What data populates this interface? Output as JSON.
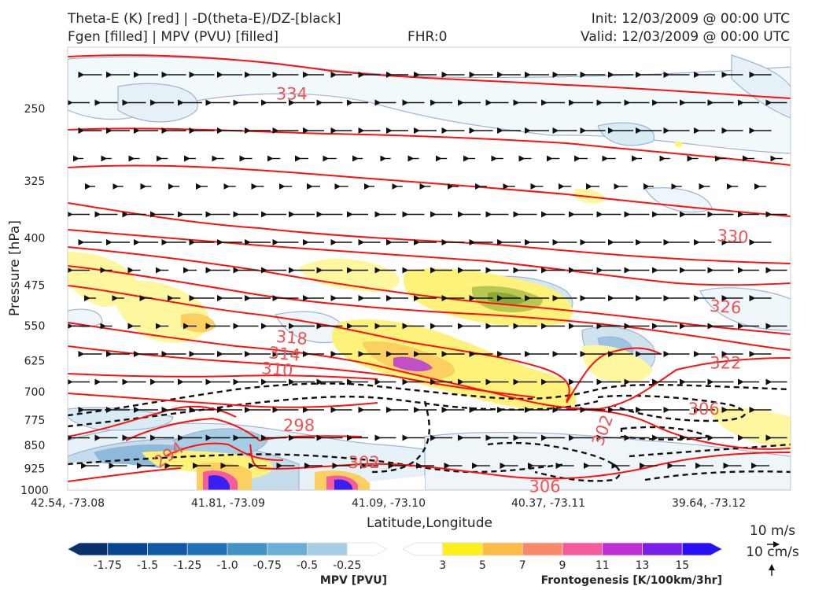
{
  "header": {
    "title_line1": "Theta-E (K) [red] | -D(theta-E)/DZ-[black]",
    "title_line2": "Fgen [filled] | MPV (PVU) [filled]",
    "fhr": "FHR:0",
    "init": "Init: 12/03/2009 @ 00:00 UTC",
    "valid": "Valid: 12/03/2009 @ 00:00 UTC"
  },
  "chart_data": {
    "type": "cross-section",
    "xlabel": "Latitude,Longitude",
    "ylabel": "Pressure [hPa]",
    "x_ticks": [
      "42.54, -73.08",
      "41.81, -73.09",
      "41.09, -73.10",
      "40.37, -73.11",
      "39.64, -73.12"
    ],
    "y_ticks": [
      250,
      325,
      400,
      475,
      550,
      625,
      700,
      775,
      850,
      925,
      1000
    ],
    "ylim": [
      1000,
      200
    ],
    "y_scale": "log",
    "theta_e_contour_labels": [
      {
        "value": "334",
        "x_frac": 0.31,
        "p": 237
      },
      {
        "value": "330",
        "x_frac": 0.92,
        "p": 398
      },
      {
        "value": "326",
        "x_frac": 0.91,
        "p": 514
      },
      {
        "value": "318",
        "x_frac": 0.31,
        "p": 575
      },
      {
        "value": "314",
        "x_frac": 0.3,
        "p": 610
      },
      {
        "value": "310",
        "x_frac": 0.29,
        "p": 645
      },
      {
        "value": "322",
        "x_frac": 0.91,
        "p": 630
      },
      {
        "value": "306",
        "x_frac": 0.88,
        "p": 745
      },
      {
        "value": "302",
        "x_frac": 0.74,
        "p": 805
      },
      {
        "value": "298",
        "x_frac": 0.32,
        "p": 791
      },
      {
        "value": "294",
        "x_frac": 0.14,
        "p": 880
      },
      {
        "value": "302",
        "x_frac": 0.41,
        "p": 905
      },
      {
        "value": "306",
        "x_frac": 0.66,
        "p": 987
      }
    ],
    "wind_reference": {
      "u_label": "10 m/s",
      "w_label": "10 cm/s"
    },
    "colorbars": [
      {
        "title": "MPV [PVU]",
        "ticks": [
          "-1.75",
          "-1.5",
          "-1.25",
          "-1.0",
          "-0.75",
          "-0.5",
          "-0.25"
        ],
        "colors": [
          "#08306b",
          "#08468f",
          "#105ba4",
          "#2171b5",
          "#4292c6",
          "#6baed6",
          "#a5cde3",
          "#ffffff"
        ]
      },
      {
        "title": "Frontogenesis [K/100km/3hr]",
        "ticks": [
          "3",
          "5",
          "7",
          "9",
          "11",
          "13",
          "15"
        ],
        "colors": [
          "#ffffff",
          "#fff01a",
          "#fbbb44",
          "#f88a6b",
          "#f65b9d",
          "#c02fd6",
          "#7a1ee8",
          "#2a10f5"
        ]
      }
    ]
  }
}
